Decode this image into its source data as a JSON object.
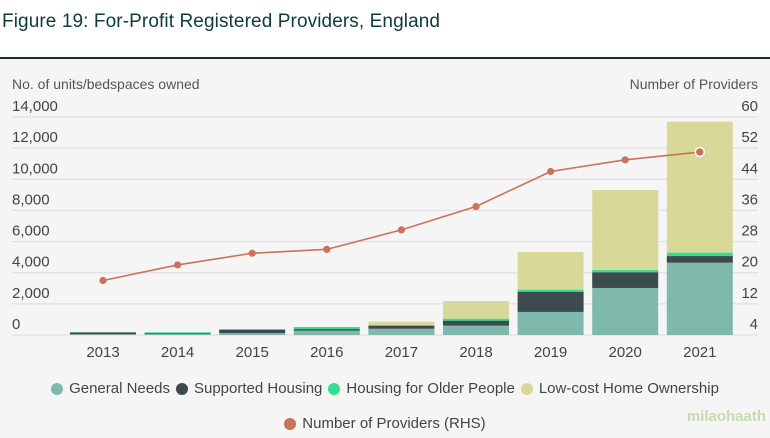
{
  "title": "Figure 19: For-Profit Registered Providers, England",
  "watermark": "milaohaath",
  "chart_data": {
    "type": "bar",
    "stacked": true,
    "categories": [
      "2013",
      "2014",
      "2015",
      "2016",
      "2017",
      "2018",
      "2019",
      "2020",
      "2021"
    ],
    "ylabel": "No. of units/bedspaces owned",
    "y2label": "Number of Providers",
    "ylim": [
      0,
      14000
    ],
    "yticks": [
      "0",
      "2,000",
      "4,000",
      "6,000",
      "8,000",
      "10,000",
      "12,000",
      "14,000"
    ],
    "y2lim": [
      4,
      60
    ],
    "y2ticks": [
      "4",
      "12",
      "20",
      "28",
      "36",
      "44",
      "52",
      "60"
    ],
    "grid": true,
    "legend_position": "bottom",
    "series": [
      {
        "name": "General Needs",
        "color": "#7fb9ab",
        "values": [
          50,
          100,
          120,
          280,
          400,
          600,
          1480,
          3020,
          4640
        ]
      },
      {
        "name": "Supported Housing",
        "color": "#3d4b4f",
        "values": [
          120,
          30,
          230,
          100,
          200,
          320,
          1300,
          1010,
          430
        ]
      },
      {
        "name": "Housing for Older People",
        "color": "#2ee08f",
        "values": [
          0,
          40,
          0,
          130,
          40,
          130,
          130,
          140,
          220
        ]
      },
      {
        "name": "Low-cost Home Ownership",
        "color": "#d8d899",
        "values": [
          0,
          0,
          0,
          0,
          220,
          1130,
          2420,
          5140,
          8410
        ]
      }
    ],
    "line_series": {
      "name": "Number of Providers (RHS)",
      "color": "#c8735a",
      "axis": "right",
      "values": [
        18,
        22,
        25,
        26,
        31,
        37,
        46,
        49,
        51
      ]
    }
  }
}
